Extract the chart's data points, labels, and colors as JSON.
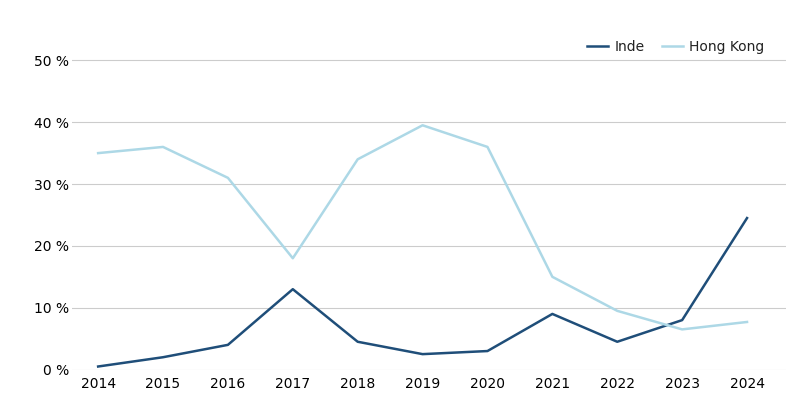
{
  "years": [
    2014,
    2015,
    2016,
    2017,
    2018,
    2019,
    2020,
    2021,
    2022,
    2023,
    2024
  ],
  "india": [
    0.5,
    2.0,
    4.0,
    13.0,
    4.5,
    2.5,
    3.0,
    9.0,
    4.5,
    8.0,
    24.5
  ],
  "hongkong": [
    35.0,
    36.0,
    31.0,
    18.0,
    34.0,
    39.5,
    36.0,
    15.0,
    9.5,
    6.5,
    7.7
  ],
  "india_color": "#1f4e79",
  "hongkong_color": "#add8e6",
  "background_color": "#ffffff",
  "grid_color": "#cccccc",
  "legend_labels": [
    "Inde",
    "Hong Kong"
  ],
  "ylim": [
    0,
    55
  ],
  "yticks": [
    0,
    10,
    20,
    30,
    40,
    50
  ],
  "tick_fontsize": 10,
  "legend_fontsize": 10,
  "line_width": 1.8,
  "fig_width": 8.02,
  "fig_height": 4.2,
  "dpi": 100
}
